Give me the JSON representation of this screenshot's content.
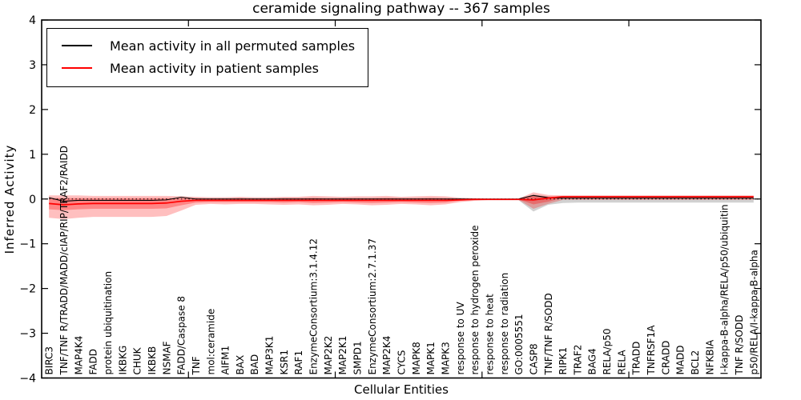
{
  "chart_data": {
    "type": "line",
    "title": "ceramide signaling pathway -- 367 samples",
    "xlabel": "Cellular Entities",
    "ylabel": "Inferred Activity",
    "ylim": [
      -4,
      4
    ],
    "yticks": [
      -4,
      -3,
      -2,
      -1,
      0,
      1,
      2,
      3,
      4
    ],
    "xticks_major_units": [
      10,
      20,
      30,
      40
    ],
    "grid": false,
    "legend_position": "upper left",
    "legend": [
      {
        "label": "Mean activity in all permuted samples",
        "color": "#000000"
      },
      {
        "label": "Mean activity in patient samples",
        "color": "#ff0000"
      }
    ],
    "categories": [
      "BIRC3",
      "TNF/TNF R/TRADD/MADD/cIAP/RIP/TRAF2/RAIDD",
      "MAP4K4",
      "FADD",
      "protein ubiquitination",
      "IKBKG",
      "CHUK",
      "IKBKB",
      "NSMAF",
      "FADD/Caspase 8",
      "TNF",
      "mol:ceramide",
      "AIFM1",
      "BAX",
      "BAD",
      "MAP3K1",
      "KSR1",
      "RAF1",
      "EnzymeConsortium:3.1.4.12",
      "MAP2K2",
      "MAP2K1",
      "SMPD1",
      "EnzymeConsortium:2.7.1.37",
      "MAP2K4",
      "CYCS",
      "MAPK8",
      "MAPK1",
      "MAPK3",
      "response to UV",
      "response to hydrogen peroxide",
      "response to heat",
      "response to radiation",
      "GO:0005551",
      "CASP8",
      "TNF/TNF R/SODD",
      "RIPK1",
      "TRAF2",
      "BAG4",
      "RELA/p50",
      "RELA",
      "TRADD",
      "TNFRSF1A",
      "CRADD",
      "MADD",
      "BCL2",
      "NFKBIA",
      "I-kappa-B-alpha/RELA/p50/ubiquitin",
      "TNF R/SODD",
      "p50/RELA/I-kappa-B-alpha"
    ],
    "series": [
      {
        "name": "Mean activity in all permuted samples",
        "color": "#000000",
        "width": 1.1,
        "values": [
          0.03,
          -0.05,
          -0.03,
          -0.03,
          -0.03,
          -0.03,
          -0.03,
          -0.03,
          -0.02,
          0.04,
          0.0,
          0.0,
          0.0,
          0.0,
          0.0,
          0.0,
          0.0,
          0.0,
          0.0,
          0.0,
          0.0,
          0.0,
          0.0,
          0.0,
          0.0,
          0.0,
          0.0,
          0.0,
          0.0,
          0.0,
          0.0,
          0.0,
          0.0,
          0.08,
          0.03,
          0.02,
          0.02,
          0.02,
          0.02,
          0.02,
          0.02,
          0.02,
          0.02,
          0.02,
          0.02,
          0.02,
          0.02,
          0.02,
          0.02
        ]
      },
      {
        "name": "Mean activity in patient samples",
        "color": "#ff0000",
        "width": 1.7,
        "values": [
          -0.1,
          -0.13,
          -0.11,
          -0.1,
          -0.1,
          -0.1,
          -0.1,
          -0.1,
          -0.09,
          -0.05,
          -0.03,
          -0.03,
          -0.03,
          -0.03,
          -0.03,
          -0.03,
          -0.03,
          -0.03,
          -0.03,
          -0.03,
          -0.03,
          -0.03,
          -0.03,
          -0.03,
          -0.03,
          -0.03,
          -0.03,
          -0.03,
          -0.02,
          -0.01,
          -0.01,
          -0.01,
          -0.01,
          -0.02,
          0.02,
          0.05,
          0.05,
          0.05,
          0.05,
          0.05,
          0.05,
          0.05,
          0.05,
          0.05,
          0.05,
          0.05,
          0.05,
          0.05,
          0.05
        ]
      }
    ],
    "bands": [
      {
        "name": "permuted-samples-band",
        "color": "#999999",
        "opacity": 0.45,
        "start_index": 32,
        "upper": [
          0.02,
          0.1,
          0.06,
          0.04,
          0.04,
          0.04,
          0.04,
          0.04,
          0.04,
          0.04,
          0.04,
          0.04,
          0.04,
          0.04,
          0.04,
          0.04,
          0.04
        ],
        "lower": [
          -0.03,
          -0.28,
          -0.13,
          -0.09,
          -0.08,
          -0.08,
          -0.08,
          -0.08,
          -0.08,
          -0.08,
          -0.08,
          -0.08,
          -0.08,
          -0.08,
          -0.08,
          -0.08,
          -0.08
        ]
      },
      {
        "name": "patient-samples-band-outer",
        "color": "#ff0000",
        "opacity": 0.25,
        "start_index": 0,
        "upper": [
          0.08,
          0.08,
          0.08,
          0.07,
          0.07,
          0.07,
          0.07,
          0.07,
          0.07,
          0.06,
          0.05,
          0.04,
          0.04,
          0.05,
          0.04,
          0.04,
          0.05,
          0.05,
          0.07,
          0.06,
          0.05,
          0.06,
          0.06,
          0.07,
          0.05,
          0.06,
          0.07,
          0.06,
          0.03,
          0.02,
          0.01,
          0.01,
          0.01,
          0.15,
          0.09,
          0.08,
          0.08,
          0.08,
          0.08,
          0.08,
          0.08,
          0.08,
          0.08,
          0.08,
          0.08,
          0.08,
          0.08,
          0.08,
          0.08
        ],
        "lower": [
          -0.42,
          -0.45,
          -0.42,
          -0.4,
          -0.4,
          -0.4,
          -0.4,
          -0.4,
          -0.38,
          -0.26,
          -0.13,
          -0.11,
          -0.12,
          -0.11,
          -0.11,
          -0.12,
          -0.13,
          -0.12,
          -0.14,
          -0.13,
          -0.11,
          -0.12,
          -0.14,
          -0.13,
          -0.11,
          -0.12,
          -0.14,
          -0.12,
          -0.07,
          -0.04,
          -0.02,
          -0.02,
          -0.02,
          -0.22,
          -0.11,
          -0.02,
          -0.02,
          -0.02,
          -0.02,
          -0.02,
          -0.02,
          -0.02,
          -0.02,
          -0.02,
          -0.02,
          -0.02,
          -0.02,
          -0.02,
          -0.02
        ]
      },
      {
        "name": "patient-samples-band-inner",
        "color": "#ff0000",
        "opacity": 0.3,
        "start_index": 0,
        "upper": [
          0.02,
          0.02,
          0.02,
          0.02,
          0.02,
          0.02,
          0.02,
          0.02,
          0.02,
          0.02,
          0.02,
          0.01,
          0.01,
          0.02,
          0.01,
          0.01,
          0.02,
          0.02,
          0.03,
          0.02,
          0.02,
          0.02,
          0.02,
          0.03,
          0.02,
          0.02,
          0.03,
          0.02,
          0.01,
          0.0,
          0.0,
          0.0,
          0.0,
          0.08,
          0.05,
          0.07,
          0.07,
          0.07,
          0.07,
          0.07,
          0.07,
          0.07,
          0.07,
          0.07,
          0.07,
          0.07,
          0.07,
          0.07,
          0.07
        ],
        "lower": [
          -0.23,
          -0.25,
          -0.23,
          -0.22,
          -0.22,
          -0.22,
          -0.22,
          -0.22,
          -0.21,
          -0.14,
          -0.08,
          -0.07,
          -0.07,
          -0.07,
          -0.07,
          -0.07,
          -0.08,
          -0.07,
          -0.09,
          -0.08,
          -0.07,
          -0.08,
          -0.09,
          -0.08,
          -0.07,
          -0.08,
          -0.09,
          -0.08,
          -0.04,
          -0.02,
          -0.01,
          -0.01,
          -0.01,
          -0.12,
          -0.06,
          0.02,
          0.02,
          0.02,
          0.02,
          0.02,
          0.02,
          0.02,
          0.02,
          0.02,
          0.02,
          0.02,
          0.02,
          0.02,
          0.02
        ]
      }
    ],
    "zero_line": {
      "style": "dotted",
      "color": "#000000",
      "y": 0
    }
  }
}
